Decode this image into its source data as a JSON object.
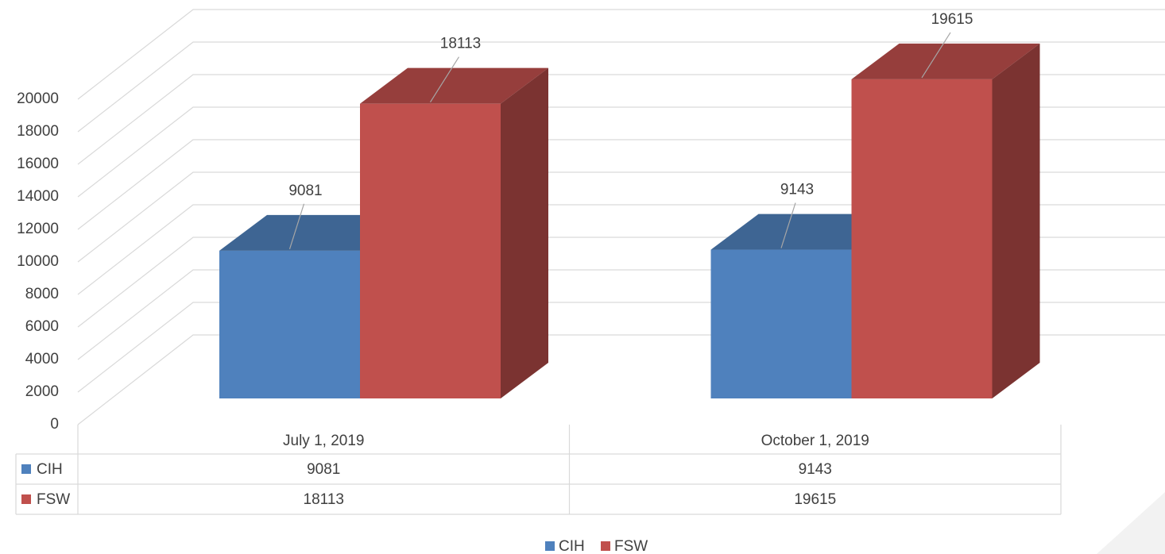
{
  "chart_data": {
    "type": "bar3d",
    "categories": [
      "July 1, 2019",
      "October 1, 2019"
    ],
    "series": [
      {
        "name": "CIH",
        "color": "#4f81bd",
        "values": [
          9081,
          9143
        ]
      },
      {
        "name": "FSW",
        "color": "#c0504d",
        "values": [
          18113,
          19615
        ]
      }
    ],
    "ylim": [
      0,
      20000
    ],
    "yticks": [
      0,
      2000,
      4000,
      6000,
      8000,
      10000,
      12000,
      14000,
      16000,
      18000,
      20000
    ],
    "grid": true,
    "data_table": true,
    "legend": "bottom"
  }
}
